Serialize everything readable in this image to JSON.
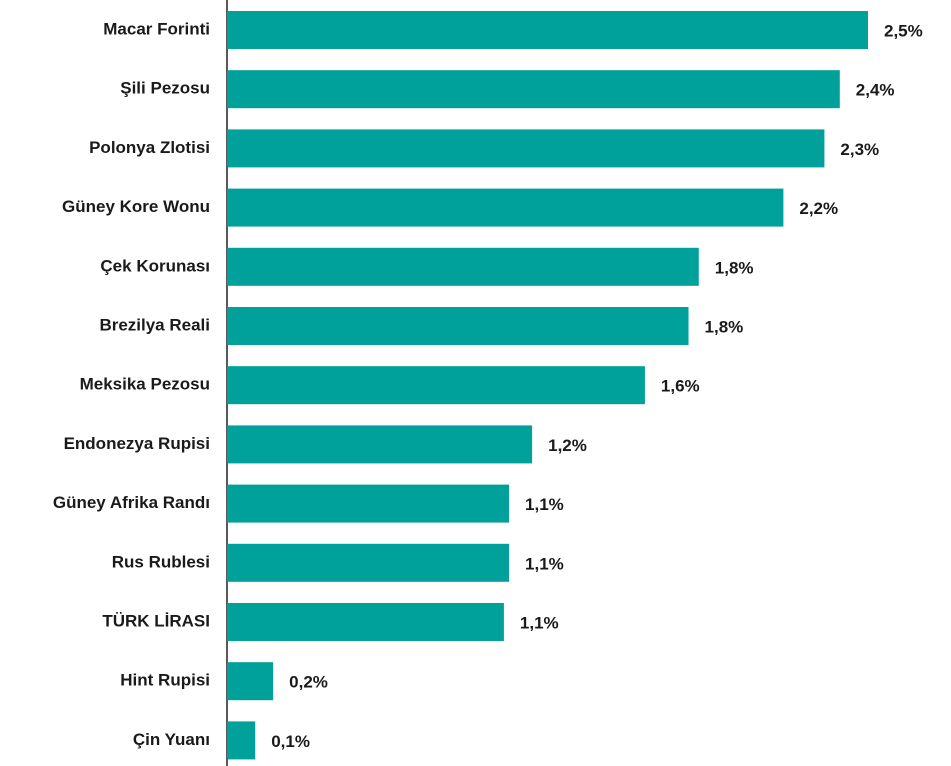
{
  "chart_data": {
    "type": "hbar",
    "categories": [
      "Macar Forinti",
      "Şili Pezosu",
      "Polonya Zlotisi",
      "Güney Kore Wonu",
      "Çek Korunası",
      "Brezilya Reali",
      "Meksika Pezosu",
      "Endonezya Rupisi",
      "Güney Afrika Randı",
      "Rus Rublesi",
      "TÜRK LİRASI",
      "Hint Rupisi",
      "Çin Yuanı"
    ],
    "values": [
      2.5,
      2.39,
      2.33,
      2.17,
      1.84,
      1.8,
      1.63,
      1.19,
      1.1,
      1.1,
      1.08,
      0.18,
      0.11
    ],
    "value_labels": [
      "2,5%",
      "2,4%",
      "2,3%",
      "2,2%",
      "1,8%",
      "1,8%",
      "1,6%",
      "1,2%",
      "1,1%",
      "1,1%",
      "1,1%",
      "0,2%",
      "0,1%"
    ],
    "color": "#00a19a",
    "xlim": [
      0,
      2.5
    ]
  }
}
